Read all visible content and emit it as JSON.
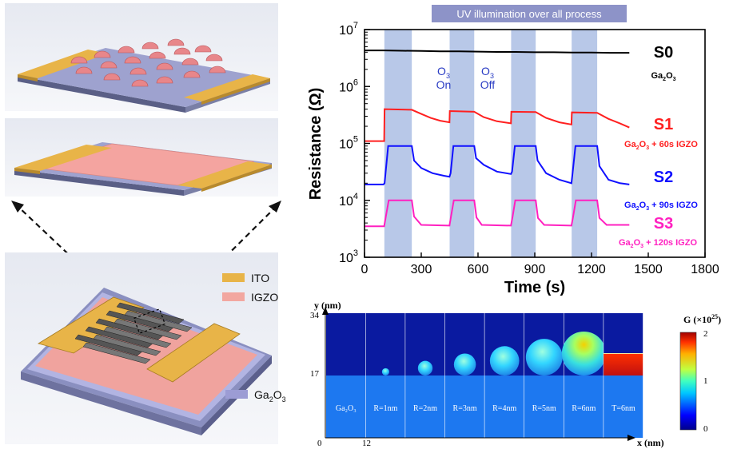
{
  "devices": {
    "legend": {
      "ito": "ITO",
      "igzo": "IGZO",
      "ga2o3_base": "Ga",
      "ga2o3_sub": "2",
      "ga2o3_tail": "O",
      "ga2o3_tail_sub": "3"
    },
    "colors": {
      "ito": "#e6b34a",
      "igzo": "#f2a7a0",
      "ga2o3": "#9c9cd4",
      "substrate": "#8a8fc0",
      "dots": "#e8868a"
    }
  },
  "chart": {
    "banner": "UV illumination over all process",
    "o3_on": {
      "l1": "O",
      "l1_sub": "3",
      "l2": "On"
    },
    "o3_off": {
      "l1": "O",
      "l1_sub": "3",
      "l2": "Off"
    },
    "labels": {
      "s0": {
        "name": "S0",
        "d1": "Ga",
        "d1_sub": "2",
        "d2": "O",
        "d2_sub": "3",
        "d3": ""
      },
      "s1": {
        "name": "S1",
        "d1": "Ga",
        "d1_sub": "2",
        "d2": "O",
        "d2_sub": "3",
        "d3": " + 60s IGZO"
      },
      "s2": {
        "name": "S2",
        "d1": "Ga",
        "d1_sub": "2",
        "d2": "O",
        "d2_sub": "3",
        "d3": " + 90s IGZO"
      },
      "s3": {
        "name": "S3",
        "d1": "Ga",
        "d1_sub": "2",
        "d2": "O",
        "d2_sub": "3",
        "d3": " + 120s IGZO"
      }
    },
    "y_tick_labels": [
      {
        "base": "10",
        "exp": "3"
      },
      {
        "base": "10",
        "exp": "4"
      },
      {
        "base": "10",
        "exp": "5"
      },
      {
        "base": "10",
        "exp": "6"
      },
      {
        "base": "10",
        "exp": "7"
      }
    ]
  },
  "chart_data": {
    "type": "line",
    "xlabel": "Time (s)",
    "ylabel": "Resistance (Ω)",
    "xlim": [
      0,
      1800
    ],
    "ylim": [
      1000,
      10000000
    ],
    "yscale": "log",
    "xticks": [
      "0",
      "300",
      "600",
      "900",
      "1200",
      "1500",
      "1800"
    ],
    "shaded_intervals": [
      [
        105,
        250
      ],
      [
        450,
        580
      ],
      [
        775,
        905
      ],
      [
        1095,
        1230
      ]
    ],
    "series": [
      {
        "name": "S0",
        "color": "#000000",
        "x": [
          0,
          100,
          200,
          300,
          400,
          500,
          600,
          700,
          800,
          900,
          1000,
          1100,
          1200,
          1300,
          1400
        ],
        "y": [
          4300000,
          4300000,
          4250000,
          4200000,
          4150000,
          4150000,
          4100000,
          4050000,
          4050000,
          4000000,
          4000000,
          3950000,
          3950000,
          3900000,
          3900000
        ]
      },
      {
        "name": "S1",
        "color": "#ff2020",
        "x": [
          0,
          104,
          106,
          250,
          300,
          350,
          400,
          449,
          451,
          580,
          630,
          700,
          774,
          776,
          905,
          960,
          1030,
          1094,
          1096,
          1230,
          1290,
          1350,
          1400
        ],
        "y": [
          110000,
          110000,
          400000,
          390000,
          330000,
          280000,
          250000,
          235000,
          370000,
          360000,
          290000,
          245000,
          225000,
          360000,
          355000,
          280000,
          235000,
          215000,
          350000,
          345000,
          270000,
          225000,
          190000
        ]
      },
      {
        "name": "S2",
        "color": "#1010ff",
        "x": [
          0,
          100,
          106,
          125,
          250,
          262,
          300,
          360,
          420,
          449,
          455,
          470,
          580,
          590,
          630,
          700,
          774,
          780,
          795,
          905,
          915,
          960,
          1030,
          1094,
          1100,
          1115,
          1230,
          1242,
          1290,
          1350,
          1400
        ],
        "y": [
          19000,
          19000,
          20000,
          90000,
          90000,
          50000,
          37000,
          30000,
          27000,
          26000,
          30000,
          90000,
          90000,
          55000,
          42000,
          32000,
          29000,
          32000,
          90000,
          90000,
          50000,
          30000,
          23000,
          20000,
          30000,
          90000,
          90000,
          40000,
          23000,
          20000,
          19000
        ]
      },
      {
        "name": "S3",
        "color": "#ff20c0",
        "x": [
          0,
          104,
          112,
          128,
          250,
          262,
          300,
          449,
          457,
          472,
          580,
          592,
          620,
          774,
          782,
          797,
          905,
          917,
          950,
          1094,
          1102,
          1117,
          1230,
          1242,
          1280,
          1400
        ],
        "y": [
          3500,
          3500,
          5000,
          10000,
          10000,
          5200,
          3700,
          3600,
          5200,
          10000,
          10000,
          5000,
          3700,
          3600,
          5000,
          10000,
          10000,
          4900,
          3700,
          3600,
          5000,
          10000,
          10000,
          4900,
          3700,
          3700
        ]
      }
    ]
  },
  "sim": {
    "y_label": "y (nm)",
    "x_label": "x (nm)",
    "y_ticks": [
      "34",
      "17",
      "0"
    ],
    "x_ticks": [
      "12"
    ],
    "panels": [
      "Ga₂O₃",
      "R=1nm",
      "R=2nm",
      "R=3nm",
      "R=4nm",
      "R=5nm",
      "R=6nm",
      "T=6nm"
    ],
    "radius_nm": [
      0,
      1,
      2,
      3,
      4,
      5,
      6,
      0
    ],
    "layer_thickness_nm": [
      0,
      0,
      0,
      0,
      0,
      0,
      0,
      6
    ],
    "colorbar_title": "G (×10",
    "colorbar_exp": "25",
    "colorbar_close": ")",
    "colorbar_ticks": [
      "2",
      "1",
      "0"
    ]
  }
}
